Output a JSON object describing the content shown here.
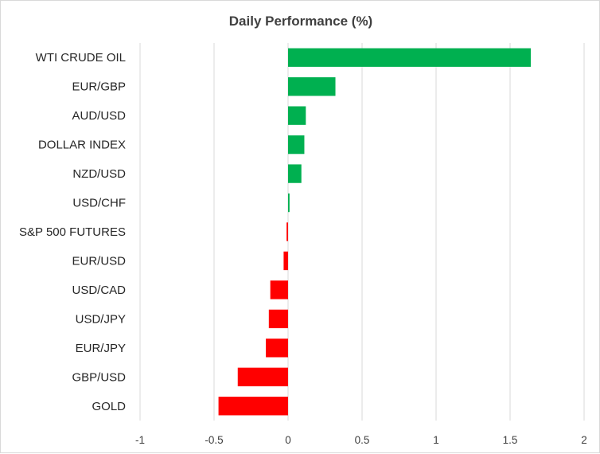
{
  "chart_data": {
    "type": "bar",
    "orientation": "horizontal",
    "title": "Daily Performance (%)",
    "xlabel": "",
    "ylabel": "",
    "categories": [
      "WTI CRUDE OIL",
      "EUR/GBP",
      "AUD/USD",
      "DOLLAR INDEX",
      "NZD/USD",
      "USD/CHF",
      "S&P 500 FUTURES",
      "EUR/USD",
      "USD/CAD",
      "USD/JPY",
      "EUR/JPY",
      "GBP/USD",
      "GOLD"
    ],
    "values": [
      1.64,
      0.32,
      0.12,
      0.11,
      0.09,
      0.01,
      -0.01,
      -0.03,
      -0.12,
      -0.13,
      -0.15,
      -0.34,
      -0.47
    ],
    "xlim": [
      -1,
      2
    ],
    "xticks": [
      -1,
      -0.5,
      0,
      0.5,
      1,
      1.5,
      2
    ],
    "xtick_labels": [
      "-1",
      "-0.5",
      "0",
      "0.5",
      "1",
      "1.5",
      "2"
    ],
    "grid": true,
    "legend": "none",
    "colors": {
      "positive": "#00b050",
      "negative": "#ff0000",
      "grid": "#d9d9d9"
    }
  }
}
